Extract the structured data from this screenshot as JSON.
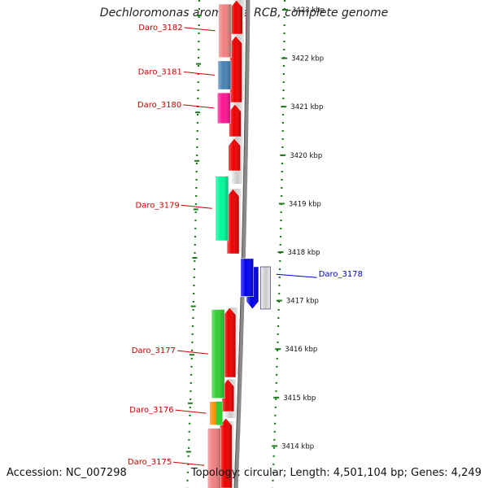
{
  "title": "Dechloromonas aromatica RCB, complete genome",
  "footer": {
    "accession": "Accession: NC_007298",
    "topology": "Topology: circular; Length: 4,501,104 bp; Genes: 4,249"
  },
  "colors": {
    "forward_gene_label": "#cc0000",
    "reverse_gene_label": "#0000cc",
    "backbone": "#8a8a8a",
    "tick": "#1a7a1a",
    "orf_forward": "#ee0000",
    "orf_reverse": "#0000ee"
  },
  "ruler": [
    {
      "kbp": 3423,
      "label": "3423 kbp"
    },
    {
      "kbp": 3422,
      "label": "3422 kbp"
    },
    {
      "kbp": 3421,
      "label": "3421 kbp"
    },
    {
      "kbp": 3420,
      "label": "3420 kbp"
    },
    {
      "kbp": 3419,
      "label": "3419 kbp"
    },
    {
      "kbp": 3418,
      "label": "3418 kbp"
    },
    {
      "kbp": 3417,
      "label": "3417 kbp"
    },
    {
      "kbp": 3416,
      "label": "3416 kbp"
    },
    {
      "kbp": 3415,
      "label": "3415 kbp"
    },
    {
      "kbp": 3414,
      "label": "3414 kbp"
    }
  ],
  "genes": [
    {
      "label": "Daro_3182",
      "strand": "forward",
      "start_kbp": 3421.98,
      "end_kbp": 3423.15,
      "color": "#f08080"
    },
    {
      "label": "Daro_3181",
      "strand": "forward",
      "start_kbp": 3421.32,
      "end_kbp": 3421.98,
      "color": "#4682b4"
    },
    {
      "label": "Daro_3180",
      "strand": "forward",
      "start_kbp": 3420.62,
      "end_kbp": 3421.32,
      "color": "#ff1493"
    },
    {
      "label": "Daro_3179",
      "strand": "forward",
      "start_kbp": 3418.2,
      "end_kbp": 3419.6,
      "color": "#00fa9a"
    },
    {
      "label": "Daro_3178",
      "strand": "reverse",
      "start_kbp": 3417.05,
      "end_kbp": 3417.9,
      "color": "#0000ee"
    },
    {
      "label": "Daro_3177",
      "strand": "forward",
      "start_kbp": 3414.95,
      "end_kbp": 3416.85,
      "color": "#32cd32"
    },
    {
      "label": "Daro_3176",
      "strand": "forward",
      "start_kbp": 3414.4,
      "end_kbp": 3414.95,
      "color": "#ff8c00"
    },
    {
      "label": "Daro_3175",
      "strand": "forward",
      "start_kbp": 3412.8,
      "end_kbp": 3414.4,
      "color": "#f08080"
    }
  ]
}
